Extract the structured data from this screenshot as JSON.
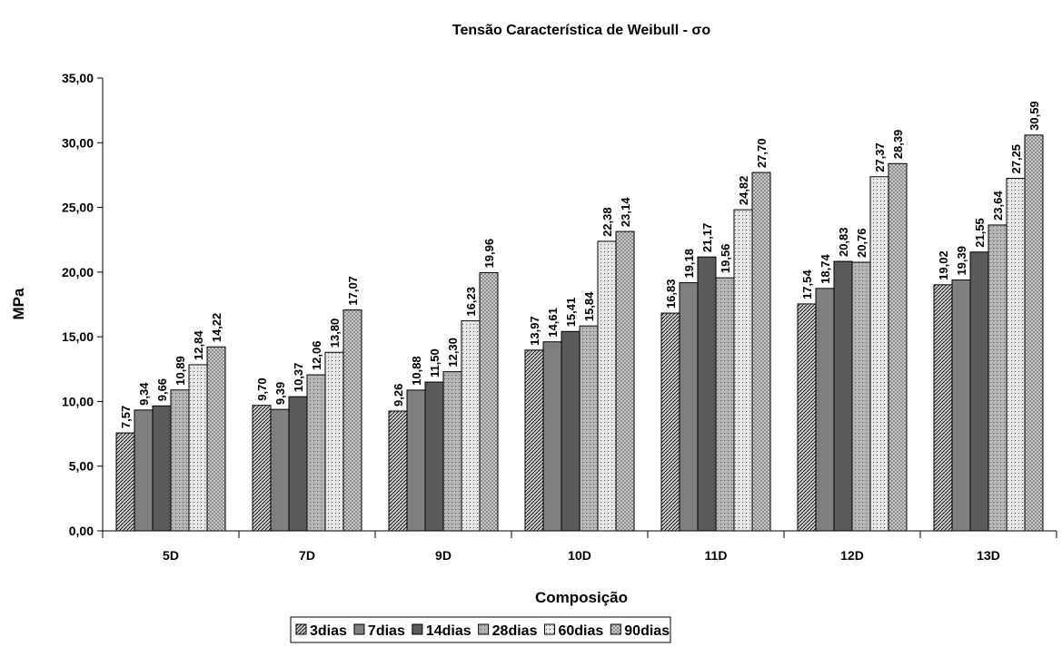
{
  "chart_data": {
    "type": "bar",
    "title": "Tensão Característica de Weibull - σo",
    "xlabel": "Composição",
    "ylabel": "MPa",
    "categories": [
      "5D",
      "7D",
      "9D",
      "10D",
      "11D",
      "12D",
      "13D"
    ],
    "series": [
      {
        "name": "3dias",
        "color": "#c8c8c8",
        "values": [
          7.57,
          9.7,
          9.26,
          13.97,
          16.83,
          17.54,
          19.02
        ],
        "value_labels": [
          "7,57",
          "9,70",
          "9,26",
          "13,97",
          "16,83",
          "17,54",
          "19,02"
        ]
      },
      {
        "name": "7dias",
        "color": "#808080",
        "values": [
          9.34,
          9.39,
          10.88,
          14.61,
          19.18,
          18.74,
          19.39
        ],
        "value_labels": [
          "9,34",
          "9,39",
          "10,88",
          "14,61",
          "19,18",
          "18,74",
          "19,39"
        ]
      },
      {
        "name": "14dias",
        "color": "#5a5a5a",
        "values": [
          9.66,
          10.37,
          11.5,
          15.41,
          21.17,
          20.83,
          21.55
        ],
        "value_labels": [
          "9,66",
          "10,37",
          "11,50",
          "15,41",
          "21,17",
          "20,83",
          "21,55"
        ]
      },
      {
        "name": "28dias",
        "color": "#b4b4b4",
        "values": [
          10.89,
          12.06,
          12.3,
          15.84,
          19.56,
          20.76,
          23.64
        ],
        "value_labels": [
          "10,89",
          "12,06",
          "12,30",
          "15,84",
          "19,56",
          "20,76",
          "23,64"
        ]
      },
      {
        "name": "60dias",
        "color": "#e6e6e6",
        "values": [
          12.84,
          13.8,
          16.23,
          22.38,
          24.82,
          27.37,
          27.25
        ],
        "value_labels": [
          "12,84",
          "13,80",
          "16,23",
          "22,38",
          "24,82",
          "27,37",
          "27,25"
        ]
      },
      {
        "name": "90dias",
        "color": "#d2d2d2",
        "values": [
          14.22,
          17.07,
          19.96,
          23.14,
          27.7,
          28.39,
          30.59
        ],
        "value_labels": [
          "14,22",
          "17,07",
          "19,96",
          "23,14",
          "27,70",
          "28,39",
          "30,59"
        ]
      }
    ],
    "ylim": [
      0,
      35
    ],
    "yticks": [
      {
        "value": 0,
        "label": "0,00"
      },
      {
        "value": 5,
        "label": "5,00"
      },
      {
        "value": 10,
        "label": "10,00"
      },
      {
        "value": 15,
        "label": "15,00"
      },
      {
        "value": 20,
        "label": "20,00"
      },
      {
        "value": 25,
        "label": "25,00"
      },
      {
        "value": 30,
        "label": "30,00"
      },
      {
        "value": 35,
        "label": "35,00"
      }
    ],
    "legend": "bottom"
  }
}
